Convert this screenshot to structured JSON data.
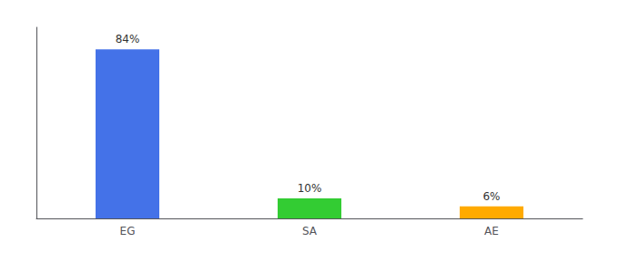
{
  "chart_data": {
    "type": "bar",
    "categories": [
      "EG",
      "SA",
      "AE"
    ],
    "values": [
      84,
      10,
      6
    ],
    "value_labels": [
      "84%",
      "10%",
      "6%"
    ],
    "colors": [
      "#4472e8",
      "#33cc33",
      "#ffaa00"
    ],
    "ylim": [
      0,
      95
    ],
    "yticks": [],
    "grid": false,
    "data_labels": true,
    "tick_labels": "x"
  }
}
